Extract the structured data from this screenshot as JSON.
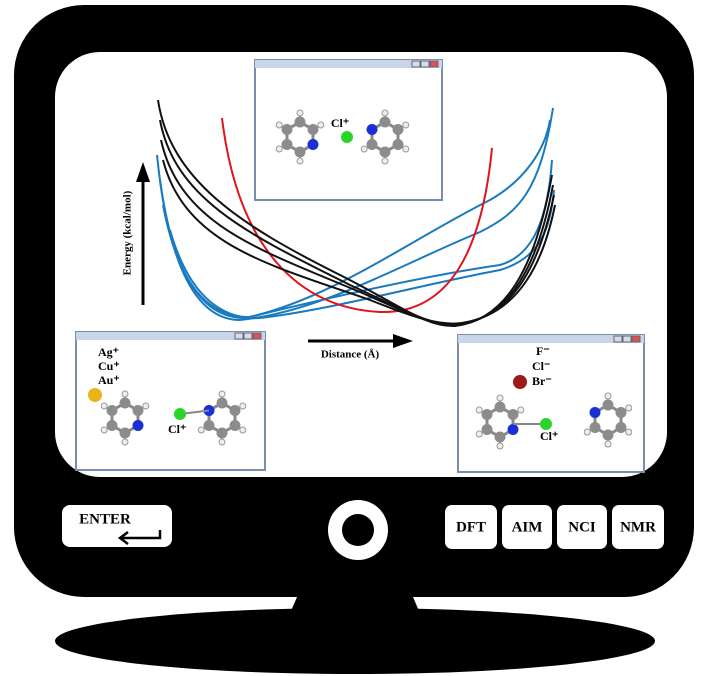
{
  "window_top": {
    "ion": "Cl⁺"
  },
  "window_left": {
    "ions": [
      "Ag⁺",
      "Cu⁺",
      "Au⁺"
    ],
    "ion": "Cl⁺"
  },
  "window_right": {
    "ions": [
      "F⁻",
      "Cl⁻",
      "Br⁻"
    ],
    "ion": "Cl⁺"
  },
  "axes": {
    "y_label": "Energy (kcal/mol)",
    "x_label": "Distance (Å)"
  },
  "keys": {
    "enter": "ENTER",
    "buttons": [
      "DFT",
      "AIM",
      "NCI",
      "NMR"
    ]
  }
}
